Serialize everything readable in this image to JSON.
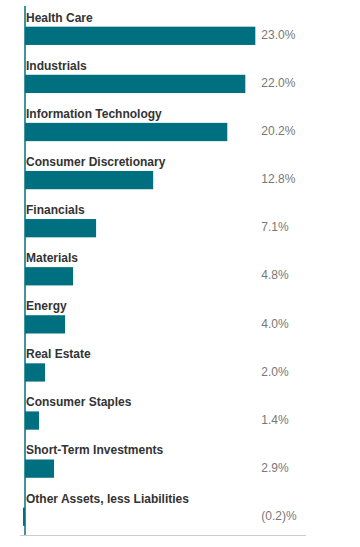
{
  "chart_data": {
    "type": "bar",
    "orientation": "horizontal",
    "categories": [
      "Health Care",
      "Industrials",
      "Information Technology",
      "Consumer Discretionary",
      "Financials",
      "Materials",
      "Energy",
      "Real Estate",
      "Consumer Staples",
      "Short-Term Investments",
      "Other Assets, less Liabilities"
    ],
    "values": [
      23.0,
      22.0,
      20.2,
      12.8,
      7.1,
      4.8,
      4.0,
      2.0,
      1.4,
      2.9,
      -0.2
    ],
    "value_labels": [
      "23.0%",
      "22.0%",
      "20.2%",
      "12.8%",
      "7.1%",
      "4.8%",
      "4.0%",
      "2.0%",
      "1.4%",
      "2.9%",
      "(0.2)%"
    ],
    "color": "#007080",
    "xlim": [
      -0.5,
      28.06
    ],
    "data_labels": true,
    "tick_labels": "y"
  }
}
